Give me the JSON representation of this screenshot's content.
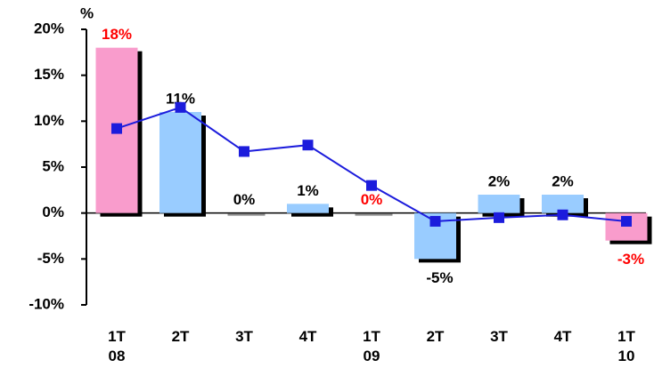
{
  "chart_data": {
    "type": "bar",
    "y_label": "%",
    "categories": [
      "1T\n08",
      "2T",
      "3T",
      "4T",
      "1T\n09",
      "2T",
      "3T",
      "4T",
      "1T\n10"
    ],
    "values": [
      18,
      11,
      0,
      1,
      0,
      -5,
      2,
      2,
      -3
    ],
    "value_labels": [
      "18%",
      "11%",
      "0%",
      "1%",
      "0%",
      "-5%",
      "2%",
      "2%",
      "-3%"
    ],
    "colors": [
      "#f99ccc",
      "#99ccff",
      "#99ccff",
      "#99ccff",
      "#99ccff",
      "#99ccff",
      "#99ccff",
      "#99ccff",
      "#f99ccc"
    ],
    "label_colors": [
      "#ff0000",
      "#000000",
      "#000000",
      "#000000",
      "#ff0000",
      "#000000",
      "#000000",
      "#000000",
      "#ff0000"
    ],
    "line": {
      "values": [
        9.2,
        11.5,
        6.7,
        7.4,
        3.0,
        -0.9,
        -0.5,
        -0.2,
        -0.9
      ],
      "color": "#1c1cdc"
    },
    "ylim": [
      -10,
      20
    ],
    "yticks": [
      {
        "value": -10,
        "label": "-10%"
      },
      {
        "value": -5,
        "label": "-5%"
      },
      {
        "value": 0,
        "label": "0%"
      },
      {
        "value": 5,
        "label": "5%"
      },
      {
        "value": 10,
        "label": "10%"
      },
      {
        "value": 15,
        "label": "15%"
      },
      {
        "value": 20,
        "label": "20%"
      }
    ]
  }
}
